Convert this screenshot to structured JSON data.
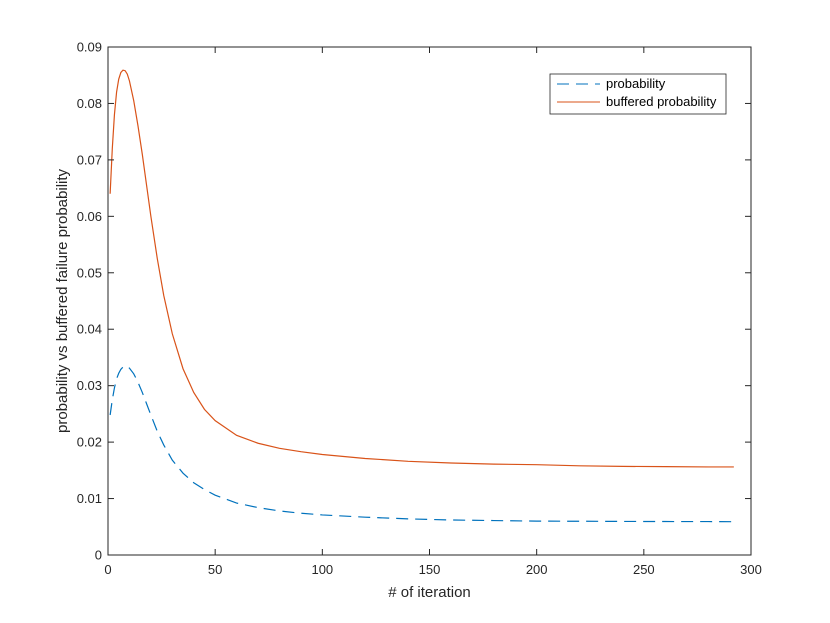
{
  "chart_data": {
    "type": "line",
    "title": "",
    "xlabel": "# of iteration",
    "ylabel": "probability vs buffered failure probability",
    "xlim": [
      0,
      300
    ],
    "ylim": [
      0,
      0.09
    ],
    "x_ticks": [
      0,
      50,
      100,
      150,
      200,
      250,
      300
    ],
    "y_ticks": [
      0,
      0.01,
      0.02,
      0.03,
      0.04,
      0.05,
      0.06,
      0.07,
      0.08,
      0.09
    ],
    "x_tick_labels": [
      "0",
      "50",
      "100",
      "150",
      "200",
      "250",
      "300"
    ],
    "y_tick_labels": [
      "0",
      "0.01",
      "0.02",
      "0.03",
      "0.04",
      "0.05",
      "0.06",
      "0.07",
      "0.08",
      "0.09"
    ],
    "grid": false,
    "legend_position": "top-right",
    "series": [
      {
        "name": "probability",
        "color": "#0072BD",
        "style": "dashed",
        "x": [
          1,
          2,
          3,
          4,
          5,
          6,
          7,
          8,
          9,
          10,
          12,
          14,
          16,
          18,
          20,
          23,
          26,
          30,
          35,
          40,
          45,
          50,
          60,
          70,
          80,
          90,
          100,
          120,
          140,
          160,
          180,
          200,
          220,
          240,
          260,
          280,
          292
        ],
        "y": [
          0.0248,
          0.0275,
          0.0296,
          0.0312,
          0.0322,
          0.0329,
          0.0333,
          0.0335,
          0.0334,
          0.0331,
          0.0321,
          0.0306,
          0.0288,
          0.0268,
          0.0248,
          0.0219,
          0.0195,
          0.0168,
          0.0145,
          0.0128,
          0.0116,
          0.0106,
          0.0092,
          0.0084,
          0.0078,
          0.0074,
          0.0071,
          0.0067,
          0.0064,
          0.0062,
          0.0061,
          0.006,
          0.00598,
          0.00595,
          0.00593,
          0.00592,
          0.0059
        ]
      },
      {
        "name": "buffered probability",
        "color": "#D95319",
        "style": "solid",
        "x": [
          1,
          2,
          3,
          4,
          5,
          6,
          7,
          8,
          9,
          10,
          12,
          14,
          16,
          18,
          20,
          23,
          26,
          30,
          35,
          40,
          45,
          50,
          60,
          70,
          80,
          90,
          100,
          120,
          140,
          160,
          180,
          200,
          220,
          240,
          260,
          280,
          292
        ],
        "y": [
          0.064,
          0.072,
          0.078,
          0.082,
          0.0843,
          0.0855,
          0.0859,
          0.0858,
          0.0852,
          0.084,
          0.0805,
          0.076,
          0.071,
          0.0655,
          0.06,
          0.0525,
          0.046,
          0.0392,
          0.033,
          0.0288,
          0.0258,
          0.0238,
          0.0212,
          0.0198,
          0.0189,
          0.0183,
          0.0178,
          0.0171,
          0.0166,
          0.0163,
          0.0161,
          0.016,
          0.0158,
          0.0157,
          0.01565,
          0.0156,
          0.0156
        ]
      }
    ]
  }
}
